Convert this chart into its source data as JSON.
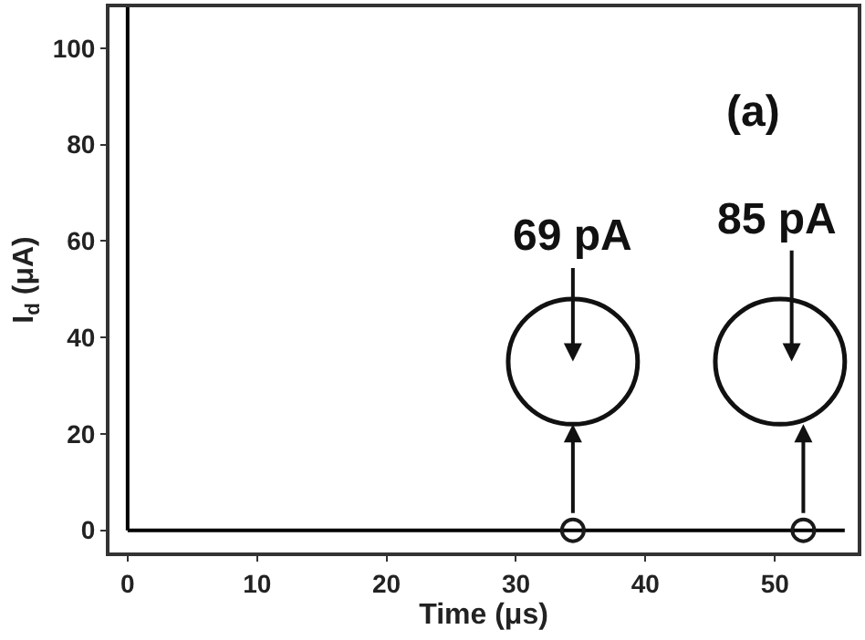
{
  "chart_data": {
    "type": "line",
    "xlabel": "Time (μs)",
    "ylabel": "I$_{d}$ (μA)",
    "xlim": [
      -1.4,
      56.4
    ],
    "ylim": [
      -4.6,
      108.5
    ],
    "xticks": [
      0,
      10,
      20,
      30,
      40,
      50
    ],
    "yticks": [
      0,
      20,
      40,
      60,
      80,
      100
    ],
    "series": [
      {
        "color": "#000000",
        "x": [
          0,
          55.4
        ],
        "values": [
          0,
          0
        ],
        "marker": "none",
        "line_style": "solid"
      },
      {
        "type": "scatter",
        "color": "#1a1a1a",
        "x": [
          34.4,
          52.2
        ],
        "values": [
          0,
          0
        ],
        "marker": "circle"
      }
    ],
    "ref_lines": [
      {
        "axis": "x",
        "value": 0,
        "color": "#000000"
      }
    ],
    "annotations": [
      "69 pA",
      "85 pA",
      "(a)"
    ]
  }
}
